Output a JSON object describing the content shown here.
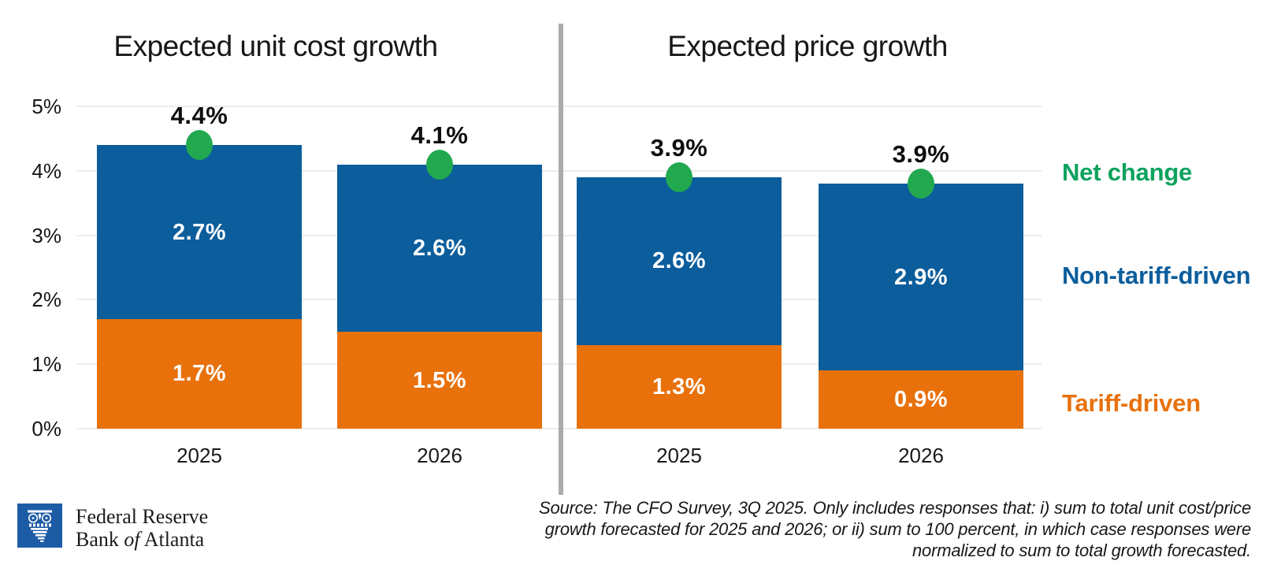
{
  "chart_data": {
    "type": "bar",
    "stacked": true,
    "grid": true,
    "y_axis": {
      "min": 0,
      "max": 5,
      "ticks_bottom_up": [
        "0%",
        "1%",
        "2%",
        "3%",
        "4%",
        "5%"
      ]
    },
    "panels": [
      {
        "title": "Expected unit cost growth",
        "categories": [
          "2025",
          "2026"
        ],
        "series": [
          {
            "name": "Tariff-driven",
            "values": [
              1.7,
              1.5
            ],
            "labels": [
              "1.7%",
              "1.5%"
            ]
          },
          {
            "name": "Non-tariff-driven",
            "values": [
              2.7,
              2.6
            ],
            "labels": [
              "2.7%",
              "2.6%"
            ]
          }
        ],
        "net_change": {
          "name": "Net change",
          "values": [
            4.4,
            4.1
          ],
          "labels": [
            "4.4%",
            "4.1%"
          ]
        }
      },
      {
        "title": "Expected price growth",
        "categories": [
          "2025",
          "2026"
        ],
        "series": [
          {
            "name": "Tariff-driven",
            "values": [
              1.3,
              0.9
            ],
            "labels": [
              "1.3%",
              "0.9%"
            ]
          },
          {
            "name": "Non-tariff-driven",
            "values": [
              2.6,
              2.9
            ],
            "labels": [
              "2.6%",
              "2.9%"
            ]
          }
        ],
        "net_change": {
          "name": "Net change",
          "values": [
            3.9,
            3.9
          ],
          "labels": [
            "3.9%",
            "3.9%"
          ]
        }
      }
    ],
    "legend": [
      {
        "label": "Net change"
      },
      {
        "label": "Non-tariff-driven"
      },
      {
        "label": "Tariff-driven"
      }
    ],
    "legend_position": "right"
  },
  "source_note": {
    "lines": [
      "Source: The CFO Survey, 3Q 2025. Only includes responses that: i) sum to total unit cost/price",
      "growth forecasted for 2025 and 2026; or ii) sum to 100 percent, in which case responses were",
      "normalized to sum to total growth forecasted."
    ]
  },
  "logo": {
    "line1": "Federal Reserve",
    "line2_a": "Bank ",
    "line2_b": "of",
    "line2_c": " Atlanta"
  },
  "colors": {
    "non_tariff_blue": "#0b5d9c",
    "tariff_orange": "#e8710c",
    "net_change_dot_green": "#22a94f",
    "net_change_text_green": "#0ca25e",
    "divider_gray": "#ababab",
    "gridline_gray": "#ececec",
    "logo_blue": "#1d5ca5",
    "title_text": "#171717",
    "bar_value_text": "#ffffff"
  }
}
